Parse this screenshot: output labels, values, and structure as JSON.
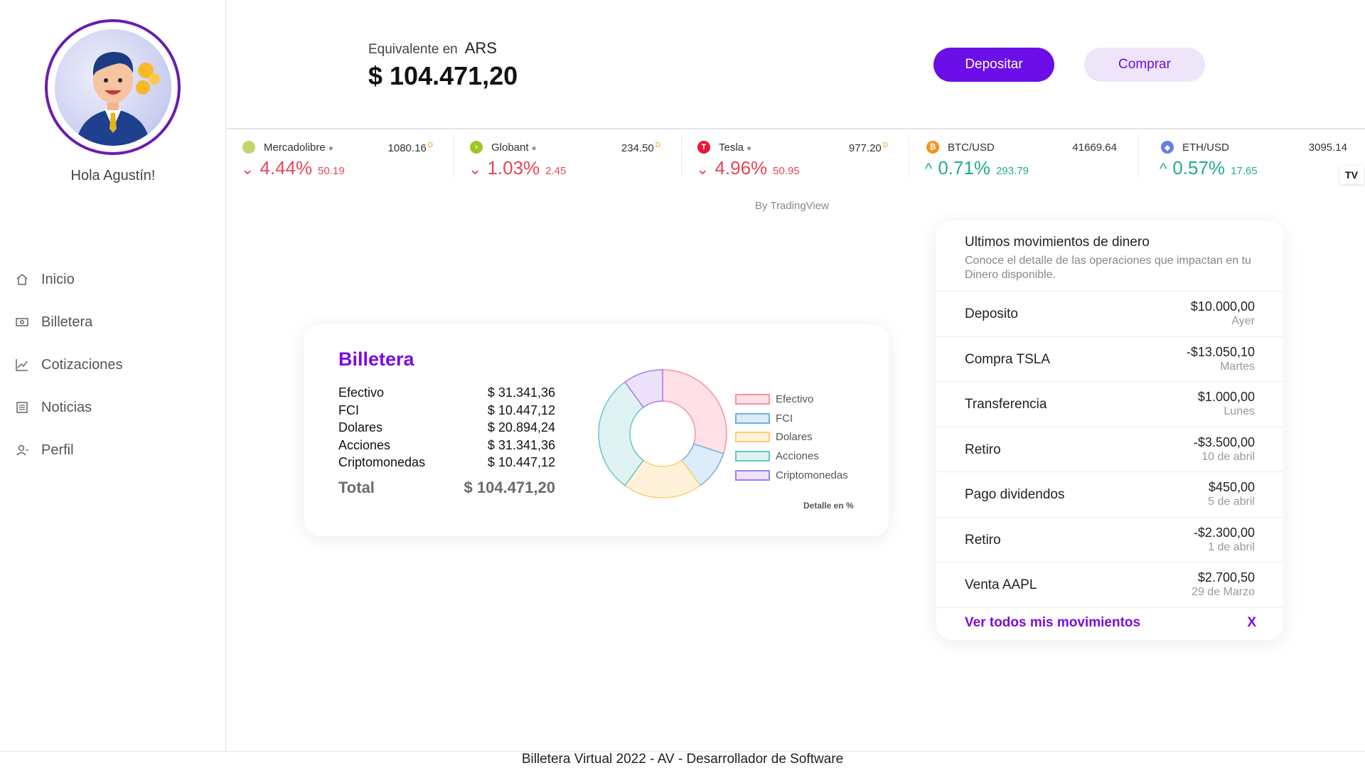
{
  "user": {
    "greeting": "Hola Agustín!"
  },
  "nav": [
    {
      "label": "Inicio",
      "icon": "home-icon"
    },
    {
      "label": "Billetera",
      "icon": "wallet-icon"
    },
    {
      "label": "Cotizaciones",
      "icon": "chart-line-icon"
    },
    {
      "label": "Noticias",
      "icon": "newspaper-icon"
    },
    {
      "label": "Perfil",
      "icon": "user-icon"
    }
  ],
  "header": {
    "equiv_label": "Equivalente en",
    "currency": "ARS",
    "balance": "$ 104.471,20",
    "deposit_label": "Depositar",
    "buy_label": "Comprar"
  },
  "ticker": [
    {
      "name": "Mercadolibre",
      "price": "1080.16",
      "flag": "D",
      "change_pct": "4.44%",
      "change_abs": "50.19",
      "direction": "down",
      "logo_color": "#c7d36e"
    },
    {
      "name": "Globant",
      "price": "234.50",
      "flag": "D",
      "change_pct": "1.03%",
      "change_abs": "2.45",
      "direction": "down",
      "logo_color": "#9bc823"
    },
    {
      "name": "Tesla",
      "price": "977.20",
      "flag": "D",
      "change_pct": "4.96%",
      "change_abs": "50.95",
      "direction": "down",
      "logo_color": "#e31937"
    },
    {
      "name": "BTC/USD",
      "price": "41669.64",
      "flag": "",
      "change_pct": "0.71%",
      "change_abs": "293.79",
      "direction": "up",
      "logo_color": "#f7931a"
    },
    {
      "name": "ETH/USD",
      "price": "3095.14",
      "flag": "",
      "change_pct": "0.57%",
      "change_abs": "17.65",
      "direction": "up",
      "logo_color": "#627eea"
    }
  ],
  "ticker_attribution": "By TradingView",
  "tradingview_logo": "TV",
  "wallet": {
    "title": "Billetera",
    "rows": [
      {
        "label": "Efectivo",
        "value": "$ 31.341,36"
      },
      {
        "label": "FCI",
        "value": "$ 10.447,12"
      },
      {
        "label": "Dolares",
        "value": "$ 20.894,24"
      },
      {
        "label": "Acciones",
        "value": "$ 31.341,36"
      },
      {
        "label": "Criptomonedas",
        "value": "$ 10.447,12"
      }
    ],
    "total_label": "Total",
    "total_value": "$ 104.471,20",
    "detail_note": "Detalle en %"
  },
  "chart_data": {
    "type": "pie",
    "categories": [
      "Efectivo",
      "FCI",
      "Dolares",
      "Acciones",
      "Criptomonedas"
    ],
    "values": [
      30,
      10,
      20,
      30,
      10
    ],
    "colors": {
      "Efectivo": {
        "fill": "#ffe1e7",
        "stroke": "#ff8ea3"
      },
      "FCI": {
        "fill": "#dcecfa",
        "stroke": "#6cb1e6"
      },
      "Dolares": {
        "fill": "#fff2d9",
        "stroke": "#ffcc70"
      },
      "Acciones": {
        "fill": "#dff2f2",
        "stroke": "#66c6c6"
      },
      "Criptomonedas": {
        "fill": "#ece2fc",
        "stroke": "#a57cf0"
      }
    },
    "legend": "right",
    "title": ""
  },
  "movements": {
    "title": "Ultimos movimientos de dinero",
    "subtitle": "Conoce el detalle de las operaciones que impactan en tu Dinero disponible.",
    "items": [
      {
        "label": "Deposito",
        "amount": "$10.000,00",
        "when": "Ayer"
      },
      {
        "label": "Compra TSLA",
        "amount": "-$13.050,10",
        "when": "Martes"
      },
      {
        "label": "Transferencia",
        "amount": "$1.000,00",
        "when": "Lunes"
      },
      {
        "label": "Retiro",
        "amount": "-$3.500,00",
        "when": "10 de abril"
      },
      {
        "label": "Pago dividendos",
        "amount": "$450,00",
        "when": "5 de abril"
      },
      {
        "label": "Retiro",
        "amount": "-$2.300,00",
        "when": "1 de abril"
      },
      {
        "label": "Venta AAPL",
        "amount": "$2.700,50",
        "when": "29 de Marzo"
      }
    ],
    "see_all_label": "Ver todos mis movimientos",
    "close_label": "X"
  },
  "footer": {
    "text": "Billetera Virtual 2022 - AV - Desarrollador de Software"
  },
  "colors": {
    "accent": "#6b0ee8",
    "accent_light": "#efe5fb",
    "down": "#e8455a",
    "up": "#22ab94"
  }
}
